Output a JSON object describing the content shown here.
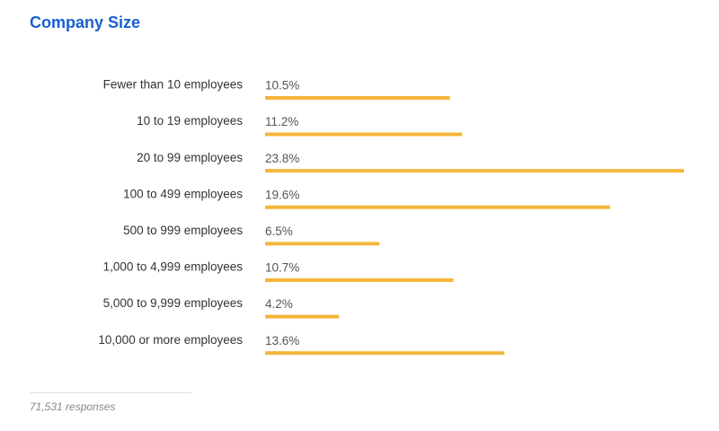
{
  "chart_data": {
    "type": "bar",
    "orientation": "horizontal",
    "title": "Company Size",
    "categories": [
      "Fewer than 10 employees",
      "10 to 19 employees",
      "20 to 99 employees",
      "100 to 499 employees",
      "500 to 999 employees",
      "1,000 to 4,999 employees",
      "5,000 to 9,999 employees",
      "10,000 or more employees"
    ],
    "values": [
      10.5,
      11.2,
      23.8,
      19.6,
      6.5,
      10.7,
      4.2,
      13.6
    ],
    "value_labels": [
      "10.5%",
      "11.2%",
      "23.8%",
      "19.6%",
      "6.5%",
      "10.7%",
      "4.2%",
      "13.6%"
    ],
    "color": "#f4b63a",
    "footnote": "71,531 responses"
  }
}
